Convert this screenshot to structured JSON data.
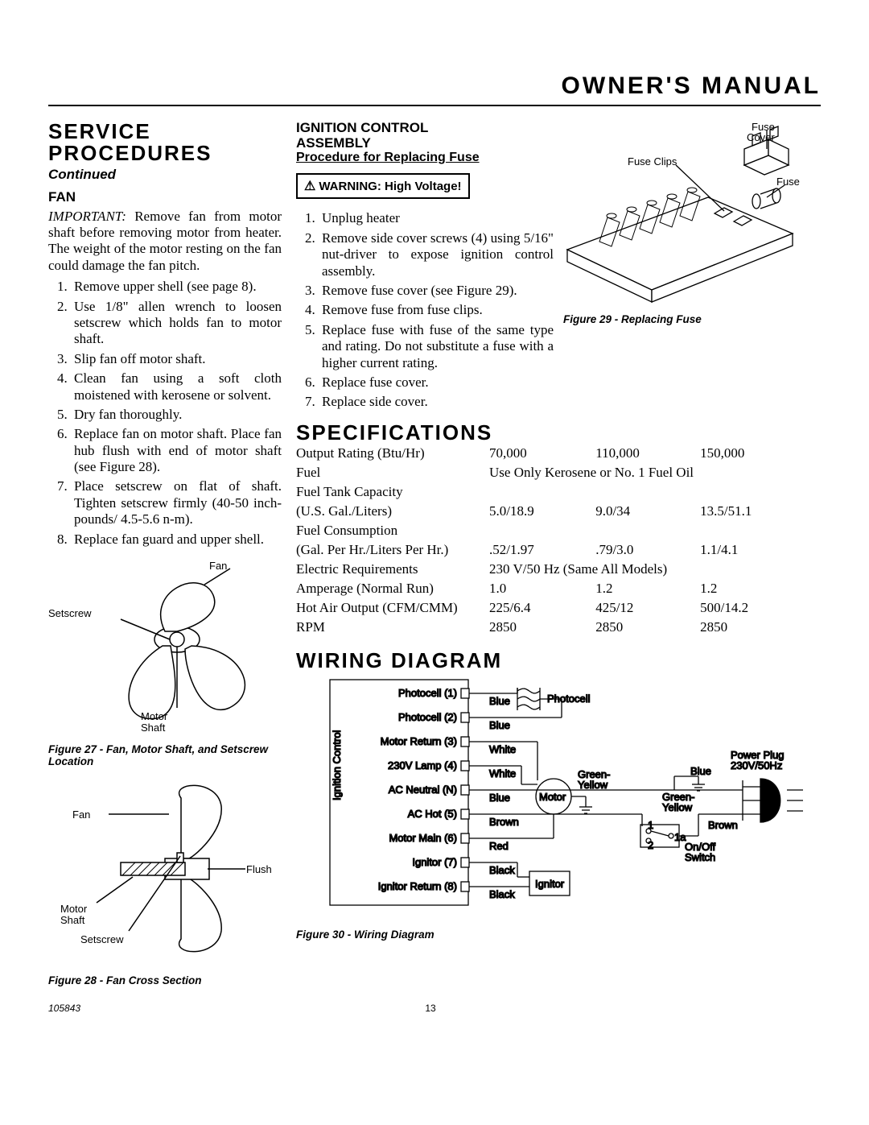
{
  "header": {
    "title": "OWNER'S MANUAL"
  },
  "left": {
    "section_title_1": "SERVICE",
    "section_title_2": "PROCEDURES",
    "continued": "Continued",
    "fan_heading": "FAN",
    "important_label": "IMPORTANT:",
    "important_text": " Remove fan from motor shaft before removing motor from heater. The weight of the motor resting on the fan could damage the fan pitch.",
    "steps": [
      "Remove upper shell (see page 8).",
      "Use 1/8\" allen wrench to loosen setscrew which holds fan to motor shaft.",
      "Slip fan off motor shaft.",
      "Clean fan using a soft cloth moistened with kerosene or solvent.",
      "Dry fan thoroughly.",
      "Replace fan on motor shaft. Place fan hub flush with end of motor shaft (see Figure 28).",
      "Place setscrew on flat of shaft. Tighten setscrew firmly (40-50 inch-pounds/ 4.5-5.6 n-m).",
      "Replace fan guard and upper shell."
    ],
    "fig27": {
      "labels": {
        "fan": "Fan",
        "setscrew": "Setscrew",
        "motor_shaft1": "Motor",
        "motor_shaft2": "Shaft"
      },
      "caption": "Figure 27 - Fan, Motor Shaft, and Setscrew Location"
    },
    "fig28": {
      "labels": {
        "fan": "Fan",
        "flush": "Flush",
        "motor_shaft1": "Motor",
        "motor_shaft2": "Shaft",
        "setscrew": "Setscrew"
      },
      "caption": "Figure 28 - Fan Cross Section"
    }
  },
  "mid": {
    "ig_head_1": "IGNITION CONTROL",
    "ig_head_2": "ASSEMBLY",
    "ig_sub": "Procedure for Replacing Fuse",
    "warning": "WARNING: High Voltage!",
    "steps": [
      "Unplug heater",
      "Remove side cover screws (4) using 5/16\" nut-driver to expose ignition control assembly.",
      "Remove fuse cover (see Figure 29).",
      "Remove fuse from fuse clips.",
      "Replace fuse with fuse of the same type and rating. Do not substitute a fuse with a higher current rating.",
      "Replace fuse cover.",
      "Replace side cover."
    ]
  },
  "right": {
    "fig29": {
      "labels": {
        "fuse_cover1": "Fuse",
        "fuse_cover2": "Cover",
        "fuse_clips": "Fuse Clips",
        "fuse": "Fuse"
      },
      "caption": "Figure 29 - Replacing Fuse"
    }
  },
  "specs": {
    "heading": "SPECIFICATIONS",
    "rows": [
      [
        "Output Rating (Btu/Hr)",
        "70,000",
        "110,000",
        "150,000"
      ],
      [
        "Fuel",
        "Use Only Kerosene or No. 1 Fuel Oil",
        "",
        ""
      ],
      [
        "Fuel Tank Capacity",
        "",
        "",
        ""
      ],
      [
        "(U.S. Gal./Liters)",
        "5.0/18.9",
        "9.0/34",
        "13.5/51.1"
      ],
      [
        "Fuel Consumption",
        "",
        "",
        ""
      ],
      [
        "(Gal. Per Hr./Liters Per Hr.)",
        ".52/1.97",
        ".79/3.0",
        "1.1/4.1"
      ],
      [
        "Electric Requirements",
        "230 V/50 Hz (Same All Models)",
        "",
        ""
      ],
      [
        "Amperage (Normal Run)",
        "1.0",
        "1.2",
        "1.2"
      ],
      [
        "Hot Air Output (CFM/CMM)",
        "225/6.4",
        "425/12",
        "500/14.2"
      ],
      [
        "RPM",
        "2850",
        "2850",
        "2850"
      ]
    ],
    "span_rows": [
      1,
      6
    ]
  },
  "wiring": {
    "heading": "WIRING DIAGRAM",
    "caption": "Figure 30 - Wiring Diagram",
    "vlabel": "Ignition Control",
    "terminals": [
      {
        "name": "Photocell (1)",
        "color": "Blue"
      },
      {
        "name": "Photocell (2)",
        "color": "Blue"
      },
      {
        "name": "Motor Return (3)",
        "color": "White"
      },
      {
        "name": "230V Lamp (4)",
        "color": "White"
      },
      {
        "name": "AC Neutral (N)",
        "color": "Blue"
      },
      {
        "name": "AC Hot (5)",
        "color": "Brown"
      },
      {
        "name": "Motor Main (6)",
        "color": "Red"
      },
      {
        "name": "Ignitor (7)",
        "color": "Black"
      },
      {
        "name": "Ignitor Return (8)",
        "color": "Black"
      }
    ],
    "components": {
      "photocell": "Photocell",
      "motor": "Motor",
      "ignitor": "Ignitor",
      "plug1": "Power Plug",
      "plug2": "230V/50Hz",
      "switch1": "On/Off",
      "switch2": "Switch",
      "gy1": "Green-",
      "gy2": "Yellow",
      "blue": "Blue",
      "brown": "Brown",
      "sw_a": "1",
      "sw_b": "2",
      "sw_c": "1a"
    }
  },
  "footer": {
    "docnum": "105843",
    "pagenum": "13"
  }
}
